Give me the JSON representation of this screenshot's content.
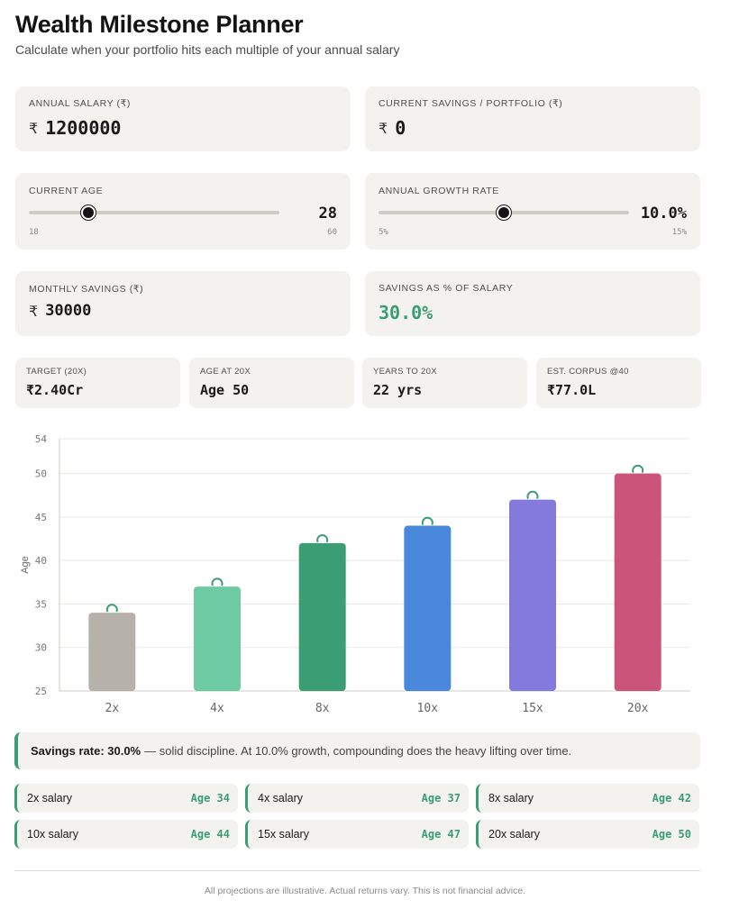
{
  "header": {
    "title": "Wealth Milestone Planner",
    "subtitle": "Calculate when your portfolio hits each multiple of your annual salary"
  },
  "inputs": {
    "salary": {
      "label": "ANNUAL SALARY (₹)",
      "currency": "₹",
      "value": "1200000"
    },
    "savings": {
      "label": "CURRENT SAVINGS / PORTFOLIO (₹)",
      "currency": "₹",
      "value": "0"
    },
    "age": {
      "label": "CURRENT AGE",
      "value": "28",
      "min": "18",
      "max": "60",
      "fraction": 0.238
    },
    "growth": {
      "label": "ANNUAL GROWTH RATE",
      "value": "10.0%",
      "min": "5%",
      "max": "15%",
      "fraction": 0.5
    },
    "monthly": {
      "label": "MONTHLY SAVINGS (₹)",
      "currency": "₹",
      "value": "30000"
    },
    "rate": {
      "label": "SAVINGS AS % OF SALARY",
      "value": "30.0%"
    }
  },
  "stats": [
    {
      "label": "TARGET (20X)",
      "value": "₹2.40Cr",
      "accent": false
    },
    {
      "label": "AGE AT 20X",
      "value": "Age 50",
      "accent": true
    },
    {
      "label": "YEARS TO 20X",
      "value": "22 yrs",
      "accent": false
    },
    {
      "label": "EST. CORPUS @40",
      "value": "₹77.0L",
      "accent": false
    }
  ],
  "chart_data": {
    "type": "bar",
    "categories": [
      "2x",
      "4x",
      "8x",
      "10x",
      "15x",
      "20x"
    ],
    "values": [
      34,
      37,
      42,
      44,
      47,
      50
    ],
    "colors": [
      "#b6b2aa",
      "#6dcaa3",
      "#3a9d74",
      "#4a88db",
      "#8479dd",
      "#cb557a"
    ],
    "ylabel": "Age",
    "ylim": [
      25,
      54
    ],
    "yticks": [
      25,
      30,
      35,
      40,
      45,
      50,
      54
    ],
    "grid": true
  },
  "note": {
    "bold": "Savings rate: 30.0%",
    "text": "— solid discipline. At 10.0% growth, compounding does the heavy lifting over time."
  },
  "milestones": [
    {
      "label": "2x salary",
      "age": "Age 34"
    },
    {
      "label": "4x salary",
      "age": "Age 37"
    },
    {
      "label": "8x salary",
      "age": "Age 42"
    },
    {
      "label": "10x salary",
      "age": "Age 44"
    },
    {
      "label": "15x salary",
      "age": "Age 47"
    },
    {
      "label": "20x salary",
      "age": "Age 50"
    }
  ],
  "footer": "All projections are illustrative. Actual returns vary. This is not financial advice."
}
